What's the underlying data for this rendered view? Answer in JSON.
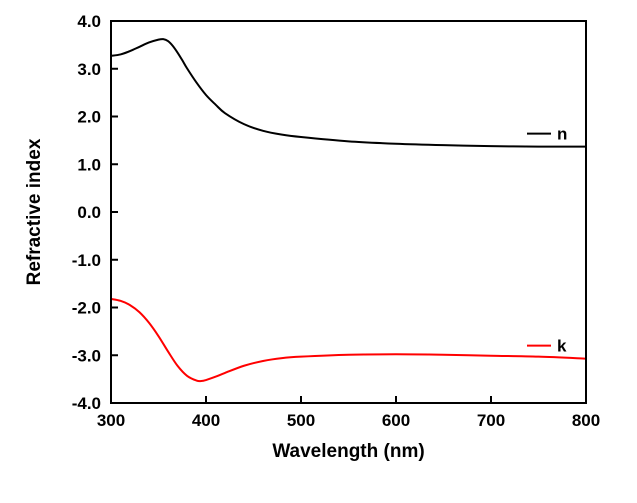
{
  "chart_data": {
    "type": "line",
    "title": "",
    "xlabel": "Wavelength (nm)",
    "ylabel": "Refractive index",
    "xlim": [
      300,
      800
    ],
    "ylim": [
      -4.0,
      4.0
    ],
    "xticks": [
      300,
      400,
      500,
      600,
      700,
      800
    ],
    "yticks": [
      4.0,
      3.0,
      2.0,
      1.0,
      0.0,
      -1.0,
      -2.0,
      -3.0,
      -4.0
    ],
    "x_tick_labels": [
      "300",
      "400",
      "500",
      "600",
      "700",
      "800"
    ],
    "y_tick_labels": [
      "4.0",
      "3.0",
      "2.0",
      "1.0",
      "0.0",
      "-1.0",
      "-2.0",
      "-3.0",
      "-4.0"
    ],
    "grid": false,
    "legend_placement": "inline-right",
    "series": [
      {
        "name": "n",
        "color": "#000000",
        "x": [
          300,
          310,
          320,
          330,
          340,
          350,
          355,
          360,
          365,
          370,
          375,
          380,
          390,
          400,
          410,
          420,
          440,
          460,
          480,
          500,
          550,
          600,
          650,
          700,
          750,
          800
        ],
        "y": [
          3.27,
          3.3,
          3.37,
          3.46,
          3.55,
          3.61,
          3.62,
          3.58,
          3.48,
          3.34,
          3.18,
          3.01,
          2.71,
          2.45,
          2.25,
          2.07,
          1.84,
          1.7,
          1.62,
          1.57,
          1.48,
          1.43,
          1.4,
          1.38,
          1.37,
          1.37
        ]
      },
      {
        "name": "k",
        "color": "#ff0000",
        "x": [
          300,
          310,
          320,
          330,
          340,
          350,
          360,
          370,
          380,
          390,
          395,
          400,
          410,
          420,
          440,
          460,
          480,
          500,
          550,
          600,
          650,
          700,
          750,
          800
        ],
        "y": [
          -1.82,
          -1.86,
          -1.95,
          -2.1,
          -2.32,
          -2.6,
          -2.92,
          -3.22,
          -3.43,
          -3.53,
          -3.54,
          -3.52,
          -3.45,
          -3.37,
          -3.22,
          -3.12,
          -3.06,
          -3.03,
          -2.99,
          -2.98,
          -2.99,
          -3.01,
          -3.03,
          -3.07
        ]
      }
    ]
  }
}
